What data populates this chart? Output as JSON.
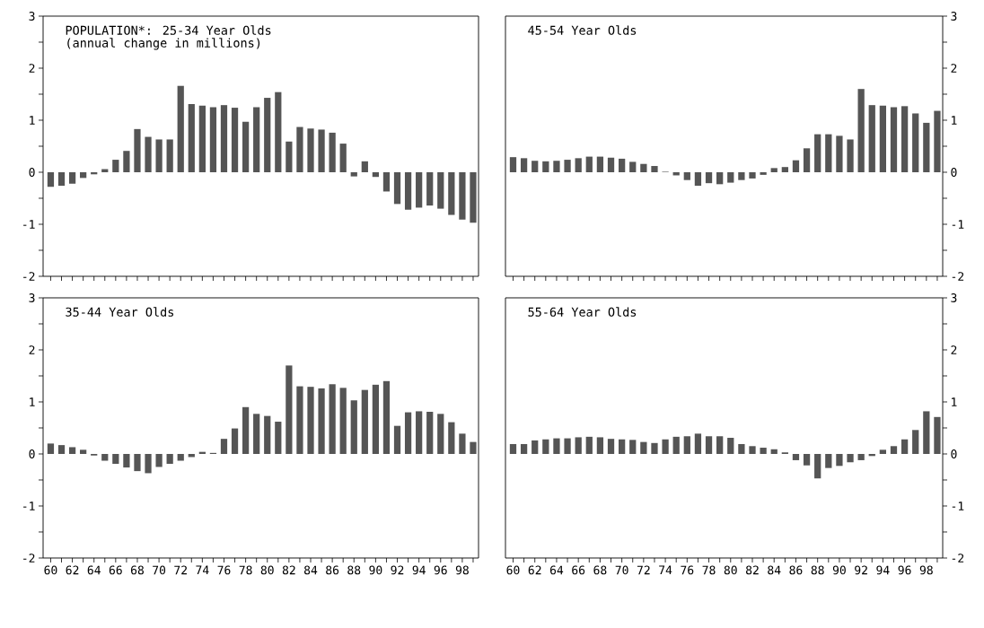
{
  "chart_data": [
    {
      "type": "bar",
      "title": "POPULATION*: 25-34 Year Olds",
      "subtitle": "(annual change in millions)",
      "categories": [
        "60",
        null,
        "62",
        null,
        "64",
        null,
        "66",
        null,
        "68",
        null,
        "70",
        null,
        "72",
        null,
        "74",
        null,
        "76",
        null,
        "78",
        null,
        "80",
        null,
        "82",
        null,
        "84",
        null,
        "86",
        null,
        "88",
        null,
        "90",
        null,
        "92",
        null,
        "94",
        null,
        "96",
        null,
        "98",
        null
      ],
      "values": [
        -0.28,
        -0.26,
        -0.22,
        -0.11,
        -0.04,
        0.06,
        0.24,
        0.41,
        0.83,
        0.68,
        0.63,
        0.63,
        1.66,
        1.31,
        1.28,
        1.25,
        1.29,
        1.24,
        0.97,
        1.25,
        1.43,
        1.54,
        0.59,
        0.87,
        0.84,
        0.82,
        0.76,
        0.55,
        -0.08,
        0.21,
        -0.09,
        -0.37,
        -0.61,
        -0.72,
        -0.68,
        -0.64,
        -0.7,
        -0.82,
        -0.91,
        -0.97
      ],
      "color": "#555555",
      "ylim": [
        -2,
        3
      ],
      "yticks": [
        -2,
        {
          "value": -1.5,
          "label": null
        },
        -1,
        {
          "value": -0.5,
          "label": null
        },
        0,
        {
          "value": 0.5,
          "label": null
        },
        1,
        {
          "value": 1.5,
          "label": null
        },
        2,
        {
          "value": 2.5,
          "label": null
        },
        3
      ],
      "tick_labels": "y"
    },
    {
      "type": "bar",
      "title": "45-54 Year Olds",
      "categories": [
        "60",
        null,
        "62",
        null,
        "64",
        null,
        "66",
        null,
        "68",
        null,
        "70",
        null,
        "72",
        null,
        "74",
        null,
        "76",
        null,
        "78",
        null,
        "80",
        null,
        "82",
        null,
        "84",
        null,
        "86",
        null,
        "88",
        null,
        "90",
        null,
        "92",
        null,
        "94",
        null,
        "96",
        null,
        "98",
        null
      ],
      "values": [
        0.29,
        0.27,
        0.22,
        0.21,
        0.22,
        0.24,
        0.27,
        0.3,
        0.3,
        0.28,
        0.26,
        0.2,
        0.16,
        0.12,
        0.01,
        -0.06,
        -0.15,
        -0.26,
        -0.21,
        -0.23,
        -0.2,
        -0.15,
        -0.12,
        -0.05,
        0.08,
        0.1,
        0.23,
        0.46,
        0.73,
        0.73,
        0.7,
        0.63,
        1.6,
        1.29,
        1.28,
        1.25,
        1.27,
        1.13,
        0.95,
        1.18
      ],
      "color": "#555555",
      "ylim": [
        -2,
        3
      ],
      "yticks": [
        -2,
        {
          "value": -1.5,
          "label": null
        },
        -1,
        {
          "value": -0.5,
          "label": null
        },
        0,
        {
          "value": 0.5,
          "label": null
        },
        1,
        {
          "value": 1.5,
          "label": null
        },
        2,
        {
          "value": 2.5,
          "label": null
        },
        3
      ],
      "tick_labels": "y"
    },
    {
      "type": "bar",
      "title": "35-44 Year Olds",
      "categories": [
        "60",
        null,
        "62",
        null,
        "64",
        null,
        "66",
        null,
        "68",
        null,
        "70",
        null,
        "72",
        null,
        "74",
        null,
        "76",
        null,
        "78",
        null,
        "80",
        null,
        "82",
        null,
        "84",
        null,
        "86",
        null,
        "88",
        null,
        "90",
        null,
        "92",
        null,
        "94",
        null,
        "96",
        null,
        "98",
        null
      ],
      "values": [
        0.2,
        0.17,
        0.13,
        0.08,
        -0.03,
        -0.13,
        -0.19,
        -0.26,
        -0.33,
        -0.37,
        -0.25,
        -0.19,
        -0.13,
        -0.06,
        0.04,
        0.02,
        0.29,
        0.49,
        0.9,
        0.77,
        0.73,
        0.62,
        1.7,
        1.3,
        1.29,
        1.26,
        1.34,
        1.27,
        1.03,
        1.23,
        1.33,
        1.4,
        0.54,
        0.8,
        0.82,
        0.81,
        0.77,
        0.61,
        0.39,
        0.23
      ],
      "color": "#555555",
      "ylim": [
        -2,
        3
      ],
      "yticks": [
        -2,
        {
          "value": -1.5,
          "label": null
        },
        -1,
        {
          "value": -0.5,
          "label": null
        },
        0,
        {
          "value": 0.5,
          "label": null
        },
        1,
        {
          "value": 1.5,
          "label": null
        },
        2,
        {
          "value": 2.5,
          "label": null
        },
        3
      ]
    },
    {
      "type": "bar",
      "title": "55-64 Year Olds",
      "categories": [
        "60",
        null,
        "62",
        null,
        "64",
        null,
        "66",
        null,
        "68",
        null,
        "70",
        null,
        "72",
        null,
        "74",
        null,
        "76",
        null,
        "78",
        null,
        "80",
        null,
        "82",
        null,
        "84",
        null,
        "86",
        null,
        "88",
        null,
        "90",
        null,
        "92",
        null,
        "94",
        null,
        "96",
        null,
        "98",
        null
      ],
      "values": [
        0.19,
        0.19,
        0.26,
        0.28,
        0.3,
        0.3,
        0.32,
        0.33,
        0.32,
        0.29,
        0.28,
        0.27,
        0.23,
        0.21,
        0.28,
        0.33,
        0.34,
        0.39,
        0.34,
        0.34,
        0.31,
        0.19,
        0.15,
        0.12,
        0.09,
        0.03,
        -0.12,
        -0.22,
        -0.47,
        -0.27,
        -0.23,
        -0.16,
        -0.12,
        -0.04,
        0.08,
        0.15,
        0.28,
        0.46,
        0.82,
        0.71
      ],
      "color": "#555555",
      "ylim": [
        -2,
        3
      ],
      "yticks": [
        -2,
        {
          "value": -1.5,
          "label": null
        },
        -1,
        {
          "value": -0.5,
          "label": null
        },
        0,
        {
          "value": 0.5,
          "label": null
        },
        1,
        {
          "value": 1.5,
          "label": null
        },
        2,
        {
          "value": 2.5,
          "label": null
        },
        3
      ]
    }
  ]
}
